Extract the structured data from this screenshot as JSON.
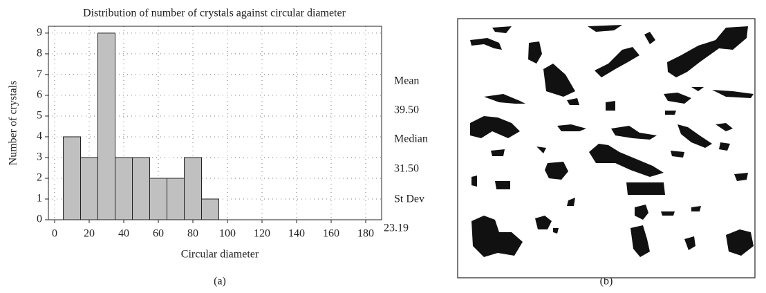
{
  "chart_data": {
    "type": "histogram",
    "title": "Distribution of number of crystals against circular diameter",
    "x_label": "Circular diameter",
    "y_label": "Number of crystals",
    "bins": [
      5,
      15,
      25,
      35,
      45,
      55,
      65,
      75,
      85,
      95
    ],
    "counts": [
      4,
      3,
      9,
      3,
      3,
      2,
      2,
      3,
      1
    ],
    "color": "#c0c0c0",
    "xlim": [
      -3.6,
      189.2
    ],
    "ylim": [
      0,
      9.33
    ],
    "xticks": [
      0,
      20,
      40,
      60,
      80,
      100,
      120,
      140,
      160,
      180
    ],
    "yticks": [
      0,
      1,
      2,
      3,
      4,
      5,
      6,
      7,
      8,
      9
    ],
    "grid": true,
    "stats": [
      {
        "label": "Mean",
        "value": "39.50"
      },
      {
        "label": "Median",
        "value": "31.50"
      },
      {
        "label": "St Dev",
        "value": "23.19"
      }
    ],
    "caption": "(a)"
  },
  "image_caption": "(b)"
}
